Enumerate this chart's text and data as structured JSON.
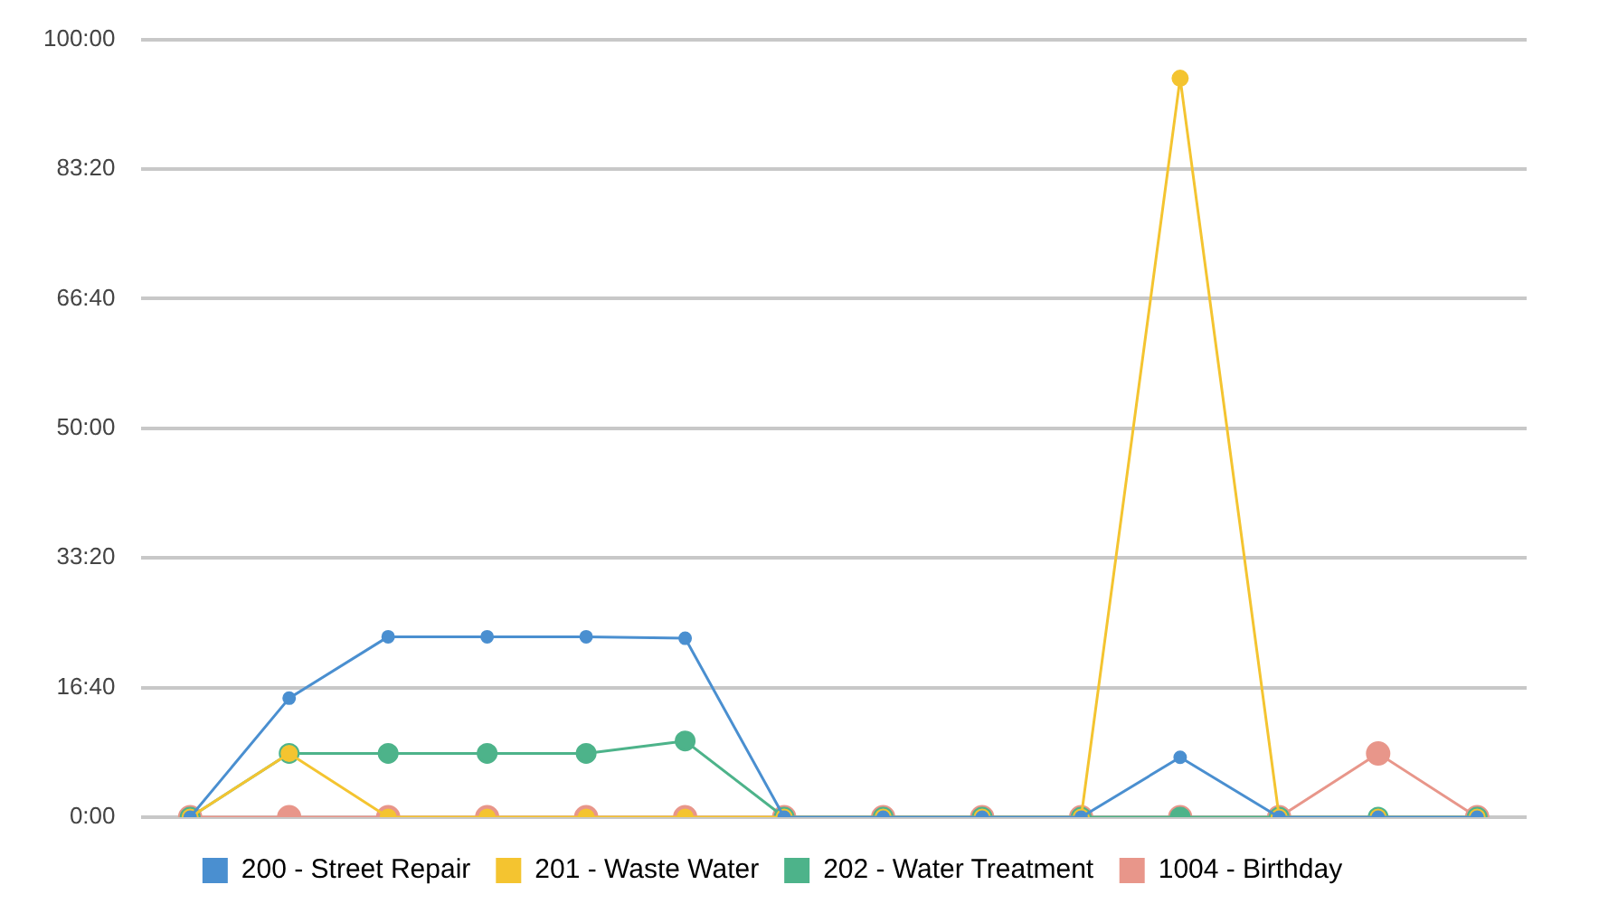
{
  "chart_data": {
    "type": "line",
    "categories": [
      null,
      null,
      null,
      null,
      null,
      null,
      null,
      null,
      null,
      null,
      null,
      null,
      null,
      null
    ],
    "series": [
      {
        "name": "200 - Street Repair",
        "color": "#4a8fd0",
        "values": [
          0,
          15.3,
          23.2,
          23.2,
          23.2,
          23,
          0,
          0,
          0,
          0,
          7.7,
          0,
          0,
          0
        ]
      },
      {
        "name": "201 - Waste Water",
        "color": "#f4c430",
        "values": [
          0,
          8.2,
          0,
          0,
          0,
          0,
          0,
          0,
          0,
          0,
          95,
          0,
          0,
          0
        ]
      },
      {
        "name": "202 - Water Treatment",
        "color": "#4db38a",
        "values": [
          0,
          8.2,
          8.2,
          8.2,
          8.2,
          9.8,
          0,
          0,
          0,
          0,
          0,
          0,
          0,
          0
        ]
      },
      {
        "name": "1004 - Birthday",
        "color": "#e8968a",
        "values": [
          0,
          0,
          0,
          0,
          0,
          0,
          0,
          0,
          0,
          0,
          0,
          0,
          8.2,
          0
        ]
      }
    ],
    "ylim": [
      0,
      100
    ],
    "yticks": [
      {
        "value": 0,
        "label": "0:00"
      },
      {
        "value": 16.6667,
        "label": "16:40"
      },
      {
        "value": 33.3333,
        "label": "33:20"
      },
      {
        "value": 50,
        "label": "50:00"
      },
      {
        "value": 66.6667,
        "label": "66:40"
      },
      {
        "value": 83.3333,
        "label": "83:20"
      },
      {
        "value": 100,
        "label": "100:00"
      }
    ],
    "grid": "y",
    "legend": "bottom",
    "marker": "circle",
    "line_style": "solid",
    "tick_labels": "y"
  }
}
